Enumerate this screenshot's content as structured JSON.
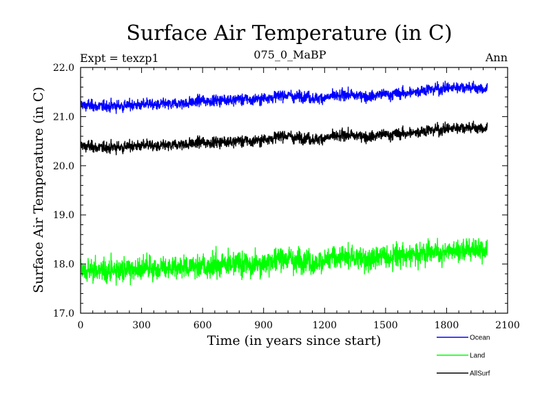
{
  "chart_data": {
    "type": "line",
    "title": "Surface Air Temperature (in C)",
    "left_label": "Expt = texzp1",
    "center_label": "075_0_MaBP",
    "right_label": "Ann",
    "xlabel": "Time (in years since start)",
    "ylabel": "Surface Air Temperature (in C)",
    "xlim": [
      0,
      2100
    ],
    "ylim": [
      17.0,
      22.0
    ],
    "xticks": [
      0,
      300,
      600,
      900,
      1200,
      1500,
      1800,
      2100
    ],
    "xtick_labels": [
      "0",
      "300",
      "600",
      "900",
      "1200",
      "1500",
      "1800",
      "2100"
    ],
    "yticks": [
      17.0,
      18.0,
      19.0,
      20.0,
      21.0,
      22.0
    ],
    "ytick_labels": [
      "17.0",
      "18.0",
      "19.0",
      "20.0",
      "21.0",
      "22.0"
    ],
    "grid": false,
    "series": [
      {
        "name": "Ocean",
        "color": "#0000ff",
        "x": [
          0,
          100,
          200,
          300,
          400,
          500,
          600,
          700,
          800,
          900,
          1000,
          1100,
          1200,
          1300,
          1400,
          1500,
          1600,
          1700,
          1800,
          1900,
          2000
        ],
        "values": [
          21.25,
          21.2,
          21.22,
          21.25,
          21.25,
          21.27,
          21.32,
          21.35,
          21.35,
          21.38,
          21.42,
          21.4,
          21.38,
          21.45,
          21.42,
          21.45,
          21.48,
          21.55,
          21.58,
          21.6,
          21.55
        ],
        "variability": 0.1
      },
      {
        "name": "Land",
        "color": "#00ff00",
        "x": [
          0,
          100,
          200,
          300,
          400,
          500,
          600,
          700,
          800,
          900,
          1000,
          1100,
          1200,
          1300,
          1400,
          1500,
          1600,
          1700,
          1800,
          1900,
          2000
        ],
        "values": [
          17.9,
          17.85,
          17.88,
          17.92,
          17.9,
          17.95,
          17.97,
          18.02,
          18.0,
          18.05,
          18.1,
          18.05,
          18.08,
          18.15,
          18.12,
          18.15,
          18.18,
          18.25,
          18.25,
          18.3,
          18.28
        ],
        "variability": 0.17
      },
      {
        "name": "AllSurf",
        "color": "#000000",
        "x": [
          0,
          100,
          200,
          300,
          400,
          500,
          600,
          700,
          800,
          900,
          1000,
          1100,
          1200,
          1300,
          1400,
          1500,
          1600,
          1700,
          1800,
          1900,
          2000
        ],
        "values": [
          20.42,
          20.36,
          20.38,
          20.42,
          20.4,
          20.44,
          20.47,
          20.5,
          20.5,
          20.54,
          20.6,
          20.55,
          20.56,
          20.63,
          20.6,
          20.63,
          20.66,
          20.72,
          20.75,
          20.78,
          20.75
        ],
        "variability": 0.1
      }
    ]
  }
}
